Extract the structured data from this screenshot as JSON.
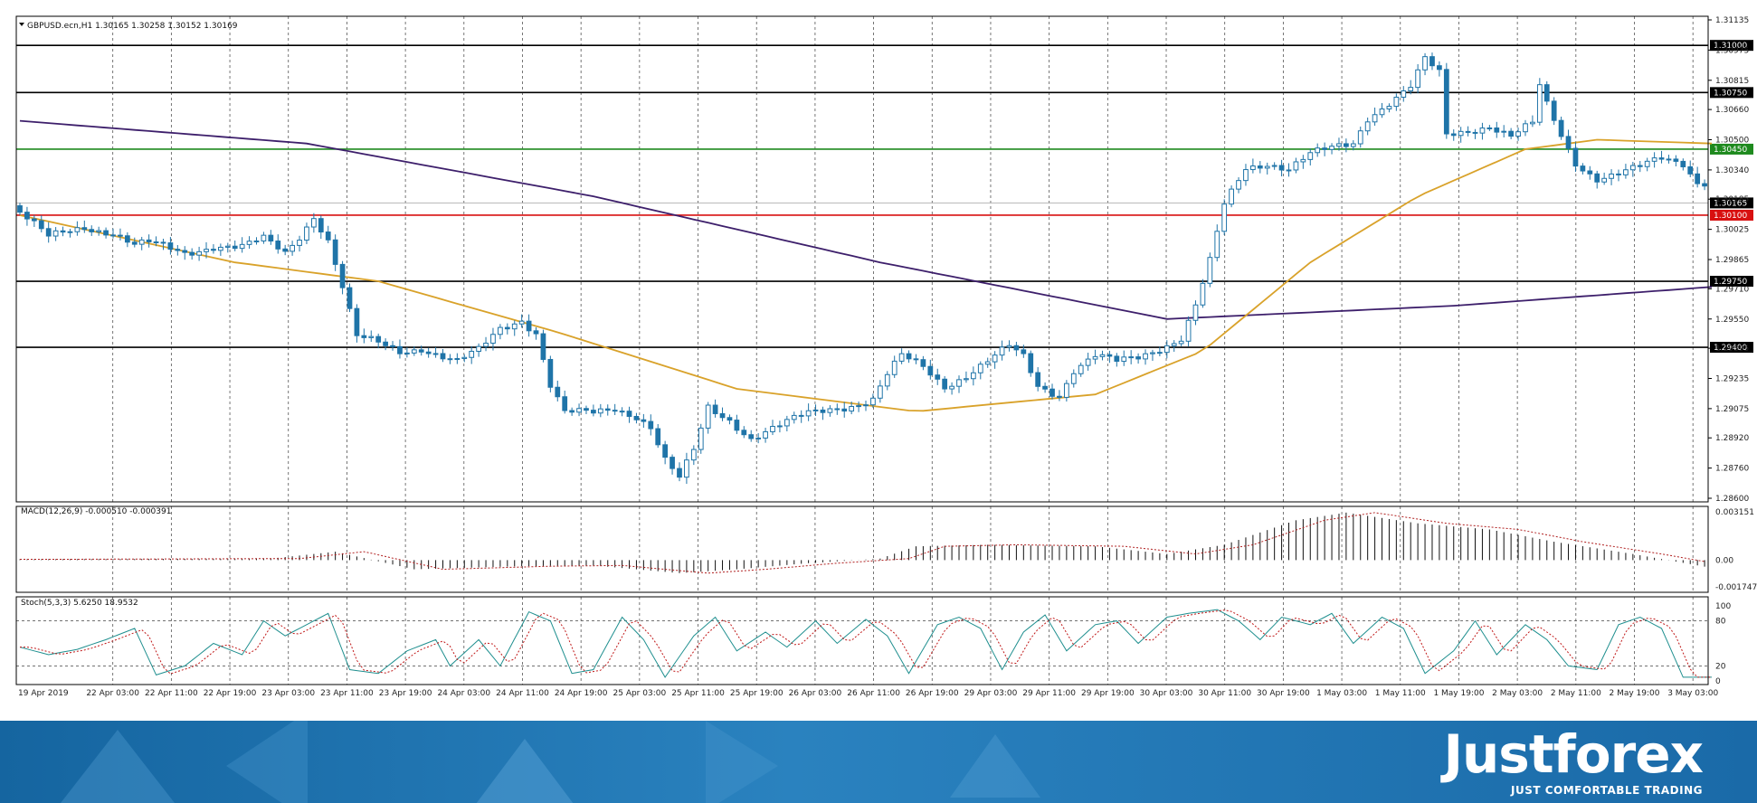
{
  "chart_data": [
    {
      "type": "candlestick",
      "symbol_header": "GBPUSD.ecn,H1  1.30165 1.30258 1.30152 1.30169",
      "y_ticks": [
        "1.31135",
        "1.30975",
        "1.30815",
        "1.30660",
        "1.30500",
        "1.30340",
        "1.30185",
        "1.30025",
        "1.29865",
        "1.29710",
        "1.29550",
        "1.29395",
        "1.29235",
        "1.29075",
        "1.28920",
        "1.28760",
        "1.28600"
      ],
      "ylim": [
        1.286,
        1.31135
      ],
      "x_ticks": [
        "19 Apr 2019",
        "22 Apr 03:00",
        "22 Apr 11:00",
        "22 Apr 19:00",
        "23 Apr 03:00",
        "23 Apr 11:00",
        "23 Apr 19:00",
        "24 Apr 03:00",
        "24 Apr 11:00",
        "24 Apr 19:00",
        "25 Apr 03:00",
        "25 Apr 11:00",
        "25 Apr 19:00",
        "26 Apr 03:00",
        "26 Apr 11:00",
        "26 Apr 19:00",
        "29 Apr 03:00",
        "29 Apr 11:00",
        "29 Apr 19:00",
        "30 Apr 03:00",
        "30 Apr 11:00",
        "30 Apr 19:00",
        "1 May 03:00",
        "1 May 11:00",
        "1 May 19:00",
        "2 May 03:00",
        "2 May 11:00",
        "2 May 19:00",
        "3 May 03:00"
      ],
      "grid": true,
      "levels": [
        {
          "price": 1.31,
          "label": "1.31000",
          "color": "#000000"
        },
        {
          "price": 1.3075,
          "label": "1.30750",
          "color": "#000000"
        },
        {
          "price": 1.3045,
          "label": "1.30450",
          "color": "#1e8a1e"
        },
        {
          "price": 1.301,
          "label": "1.30100",
          "color": "#d81010"
        },
        {
          "price": 1.2975,
          "label": "1.29750",
          "color": "#000000"
        },
        {
          "price": 1.294,
          "label": "1.29400",
          "color": "#000000"
        }
      ],
      "current_price": {
        "price": 1.30165,
        "label": "1.30165"
      },
      "candle_color": "#1f74a8",
      "close_path": [
        [
          0,
          1.3015
        ],
        [
          5,
          1.2998
        ],
        [
          10,
          1.3004
        ],
        [
          14,
          1.3001
        ],
        [
          17,
          1.2994
        ],
        [
          19,
          1.2995
        ],
        [
          24,
          1.299
        ],
        [
          28,
          1.2994
        ],
        [
          32,
          1.2993
        ],
        [
          35,
          1.2997
        ],
        [
          38,
          1.299
        ],
        [
          40,
          1.2999
        ],
        [
          42,
          1.301
        ],
        [
          44,
          1.2997
        ],
        [
          46,
          1.2972
        ],
        [
          48,
          1.2945
        ],
        [
          51,
          1.2942
        ],
        [
          54,
          1.2938
        ],
        [
          57,
          1.294
        ],
        [
          60,
          1.2935
        ],
        [
          62,
          1.2932
        ],
        [
          65,
          1.2938
        ],
        [
          68,
          1.295
        ],
        [
          71,
          1.2955
        ],
        [
          73,
          1.2948
        ],
        [
          75,
          1.292
        ],
        [
          77,
          1.2905
        ],
        [
          81,
          1.2905
        ],
        [
          84,
          1.2908
        ],
        [
          87,
          1.2904
        ],
        [
          89,
          1.2898
        ],
        [
          91,
          1.288
        ],
        [
          93,
          1.287
        ],
        [
          95,
          1.2885
        ],
        [
          97,
          1.2908
        ],
        [
          100,
          1.2902
        ],
        [
          103,
          1.2892
        ],
        [
          107,
          1.2898
        ],
        [
          111,
          1.2905
        ],
        [
          114,
          1.2908
        ],
        [
          118,
          1.291
        ],
        [
          120,
          1.2912
        ],
        [
          122,
          1.2925
        ],
        [
          124,
          1.2935
        ],
        [
          127,
          1.293
        ],
        [
          130,
          1.292
        ],
        [
          133,
          1.2925
        ],
        [
          136,
          1.2932
        ],
        [
          139,
          1.294
        ],
        [
          141,
          1.2935
        ],
        [
          143,
          1.292
        ],
        [
          146,
          1.2915
        ],
        [
          148,
          1.2928
        ],
        [
          151,
          1.2935
        ],
        [
          154,
          1.2932
        ],
        [
          157,
          1.2935
        ],
        [
          160,
          1.294
        ],
        [
          163,
          1.2945
        ],
        [
          165,
          1.2962
        ],
        [
          167,
          1.2985
        ],
        [
          169,
          1.3015
        ],
        [
          172,
          1.3035
        ],
        [
          175,
          1.3038
        ],
        [
          178,
          1.3035
        ],
        [
          181,
          1.3042
        ],
        [
          184,
          1.3045
        ],
        [
          187,
          1.3048
        ],
        [
          189,
          1.3062
        ],
        [
          192,
          1.307
        ],
        [
          195,
          1.3078
        ],
        [
          197,
          1.3092
        ],
        [
          199,
          1.3085
        ],
        [
          200,
          1.3052
        ],
        [
          203,
          1.3055
        ],
        [
          206,
          1.3058
        ],
        [
          209,
          1.3052
        ],
        [
          212,
          1.3058
        ],
        [
          213,
          1.3078
        ],
        [
          214,
          1.3068
        ],
        [
          216,
          1.3052
        ],
        [
          218,
          1.3038
        ],
        [
          221,
          1.303
        ],
        [
          224,
          1.3032
        ],
        [
          227,
          1.3035
        ],
        [
          230,
          1.304
        ],
        [
          233,
          1.3038
        ],
        [
          235,
          1.3028
        ]
      ],
      "ma_slow": {
        "color": "#3d1f6b",
        "points": [
          [
            0,
            1.306
          ],
          [
            40,
            1.3048
          ],
          [
            80,
            1.302
          ],
          [
            120,
            1.2985
          ],
          [
            160,
            1.2955
          ],
          [
            200,
            1.2962
          ],
          [
            236,
            1.2972
          ]
        ]
      },
      "ma_fast": {
        "color": "#d9a22a",
        "points": [
          [
            0,
            1.301
          ],
          [
            30,
            1.2985
          ],
          [
            50,
            1.2975
          ],
          [
            75,
            1.2948
          ],
          [
            100,
            1.2918
          ],
          [
            125,
            1.2906
          ],
          [
            150,
            1.2915
          ],
          [
            165,
            1.2938
          ],
          [
            180,
            1.2985
          ],
          [
            195,
            1.302
          ],
          [
            210,
            1.3045
          ],
          [
            220,
            1.305
          ],
          [
            236,
            1.3048
          ]
        ]
      }
    },
    {
      "type": "histogram",
      "header": "MACD(12,26,9) -0.000510 -0.000391",
      "y_ticks": [
        "0.003151",
        "0.00",
        "-0.001747"
      ],
      "ylim": [
        -0.001747,
        0.003151
      ],
      "bar_color": "#111111",
      "signal_color": "#b02020",
      "points": [
        [
          0,
          5e-05
        ],
        [
          35,
          0.0001
        ],
        [
          44,
          0.00055
        ],
        [
          55,
          -0.0006
        ],
        [
          70,
          -0.0004
        ],
        [
          80,
          -0.00035
        ],
        [
          92,
          -0.00085
        ],
        [
          100,
          -0.0006
        ],
        [
          110,
          -0.0002
        ],
        [
          120,
          0.0001
        ],
        [
          125,
          0.0009
        ],
        [
          135,
          0.001
        ],
        [
          150,
          0.0009
        ],
        [
          160,
          0.0004
        ],
        [
          168,
          0.001
        ],
        [
          178,
          0.0026
        ],
        [
          185,
          0.0031
        ],
        [
          195,
          0.0024
        ],
        [
          205,
          0.002
        ],
        [
          214,
          0.0012
        ],
        [
          225,
          0.0004
        ],
        [
          236,
          -0.00051
        ]
      ]
    },
    {
      "type": "line",
      "header": "Stoch(5,3,3) 5.6250 18.9532",
      "y_ticks": [
        "100",
        "80",
        "20",
        "0"
      ],
      "ylim": [
        0,
        100
      ],
      "main_color": "#1f8f8f",
      "signal_color": "#c01818",
      "points": [
        [
          0,
          45
        ],
        [
          4,
          35
        ],
        [
          8,
          42
        ],
        [
          12,
          55
        ],
        [
          16,
          70
        ],
        [
          19,
          8
        ],
        [
          23,
          20
        ],
        [
          27,
          50
        ],
        [
          31,
          35
        ],
        [
          34,
          80
        ],
        [
          37,
          60
        ],
        [
          40,
          75
        ],
        [
          43,
          90
        ],
        [
          46,
          15
        ],
        [
          50,
          10
        ],
        [
          54,
          40
        ],
        [
          58,
          55
        ],
        [
          60,
          20
        ],
        [
          64,
          55
        ],
        [
          67,
          20
        ],
        [
          71,
          92
        ],
        [
          74,
          80
        ],
        [
          77,
          10
        ],
        [
          80,
          15
        ],
        [
          84,
          85
        ],
        [
          87,
          55
        ],
        [
          90,
          5
        ],
        [
          94,
          60
        ],
        [
          97,
          85
        ],
        [
          100,
          40
        ],
        [
          104,
          65
        ],
        [
          107,
          45
        ],
        [
          111,
          80
        ],
        [
          114,
          50
        ],
        [
          118,
          82
        ],
        [
          121,
          60
        ],
        [
          124,
          10
        ],
        [
          128,
          75
        ],
        [
          131,
          85
        ],
        [
          134,
          70
        ],
        [
          137,
          15
        ],
        [
          140,
          65
        ],
        [
          143,
          88
        ],
        [
          146,
          40
        ],
        [
          150,
          75
        ],
        [
          153,
          80
        ],
        [
          156,
          50
        ],
        [
          160,
          85
        ],
        [
          163,
          90
        ],
        [
          167,
          95
        ],
        [
          170,
          80
        ],
        [
          173,
          55
        ],
        [
          176,
          85
        ],
        [
          180,
          75
        ],
        [
          183,
          90
        ],
        [
          186,
          50
        ],
        [
          190,
          85
        ],
        [
          193,
          70
        ],
        [
          196,
          10
        ],
        [
          200,
          40
        ],
        [
          203,
          80
        ],
        [
          206,
          35
        ],
        [
          210,
          75
        ],
        [
          213,
          55
        ],
        [
          216,
          20
        ],
        [
          220,
          15
        ],
        [
          223,
          75
        ],
        [
          226,
          85
        ],
        [
          229,
          70
        ],
        [
          232,
          5
        ]
      ]
    }
  ],
  "branding": {
    "name": "Justforex",
    "tagline": "JUST COMFORTABLE TRADING"
  }
}
